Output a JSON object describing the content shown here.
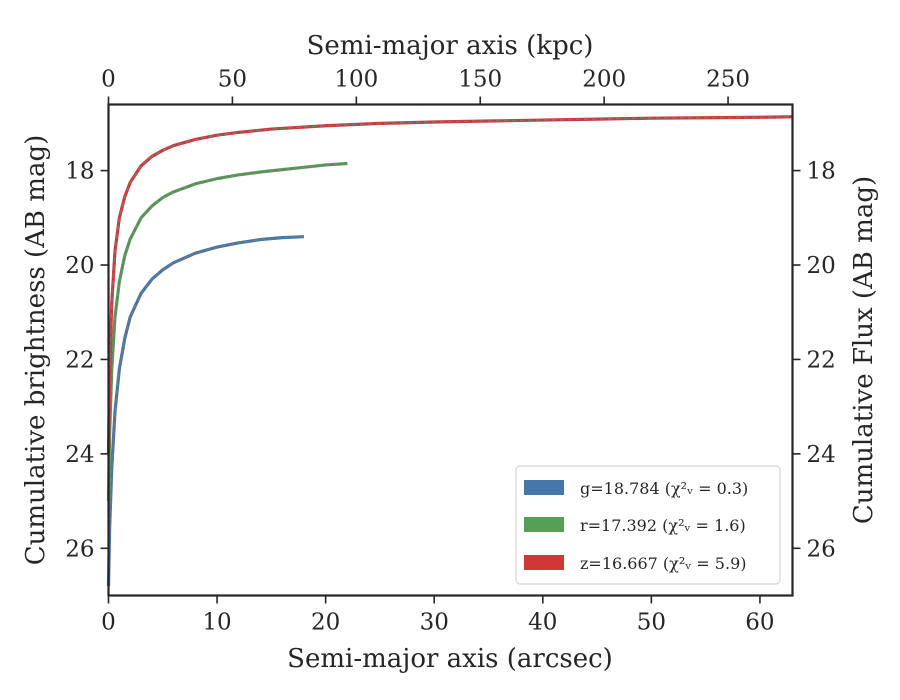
{
  "chart_data": {
    "type": "line",
    "xlabel": "Semi-major axis (arcsec)",
    "top_xlabel": "Semi-major axis (kpc)",
    "ylabel": "Cumulative brightness (AB mag)",
    "right_ylabel": "Cumulative Flux (AB mag)",
    "xlim": [
      0,
      63
    ],
    "top_xlim": [
      0,
      276
    ],
    "ylim": [
      27.0,
      16.6
    ],
    "y_inverted": true,
    "x_ticks": [
      0,
      10,
      20,
      30,
      40,
      50,
      60
    ],
    "x_tick_labels": [
      "0",
      "10",
      "20",
      "30",
      "40",
      "50",
      "60"
    ],
    "top_x_ticks": [
      0,
      50,
      100,
      150,
      200,
      250
    ],
    "top_x_tick_labels": [
      "0",
      "50",
      "100",
      "150",
      "200",
      "250"
    ],
    "y_ticks": [
      18,
      20,
      22,
      24,
      26
    ],
    "y_tick_labels": [
      "18",
      "20",
      "22",
      "24",
      "26"
    ],
    "grid": false,
    "legend_position": "lower-right",
    "model_line_style": "dashed gray",
    "series": [
      {
        "name": "g",
        "color": "#4477aa",
        "x": [
          0.0,
          0.1,
          0.3,
          0.6,
          1.0,
          1.5,
          2.0,
          3.0,
          4.0,
          5.0,
          6.0,
          8.0,
          10.0,
          12.0,
          14.0,
          16.0,
          18.0
        ],
        "y": [
          26.8,
          25.6,
          24.3,
          23.1,
          22.2,
          21.55,
          21.1,
          20.6,
          20.3,
          20.1,
          19.95,
          19.75,
          19.62,
          19.53,
          19.46,
          19.42,
          19.4
        ]
      },
      {
        "name": "r",
        "color": "#55a054",
        "x": [
          0.0,
          0.1,
          0.3,
          0.6,
          1.0,
          1.5,
          2.0,
          3.0,
          4.0,
          5.0,
          6.0,
          8.0,
          10.0,
          12.0,
          14.0,
          16.0,
          18.0,
          20.0,
          22.0
        ],
        "y": [
          25.0,
          23.6,
          22.2,
          21.1,
          20.35,
          19.8,
          19.45,
          19.0,
          18.75,
          18.57,
          18.45,
          18.28,
          18.17,
          18.09,
          18.03,
          17.98,
          17.93,
          17.88,
          17.85
        ]
      },
      {
        "name": "z",
        "color": "#d03838",
        "x": [
          0.0,
          0.1,
          0.3,
          0.6,
          1.0,
          1.5,
          2.0,
          3.0,
          4.0,
          5.0,
          6.0,
          8.0,
          10.0,
          12.0,
          15.0,
          20.0,
          25.0,
          30.0,
          35.0,
          40.0,
          45.0,
          50.0,
          55.0,
          60.0,
          63.0
        ],
        "y": [
          24.0,
          22.3,
          20.8,
          19.7,
          19.0,
          18.55,
          18.25,
          17.9,
          17.7,
          17.57,
          17.47,
          17.34,
          17.25,
          17.19,
          17.12,
          17.05,
          17.0,
          16.97,
          16.95,
          16.93,
          16.91,
          16.89,
          16.88,
          16.87,
          16.86
        ]
      }
    ],
    "legend": [
      {
        "label": "g=18.784 (χ²ᵥ = 0.3)",
        "color": "#4477aa"
      },
      {
        "label": "r=17.392 (χ²ᵥ = 1.6)",
        "color": "#55a054"
      },
      {
        "label": "z=16.667 (χ²ᵥ = 5.9)",
        "color": "#d03838"
      }
    ]
  }
}
